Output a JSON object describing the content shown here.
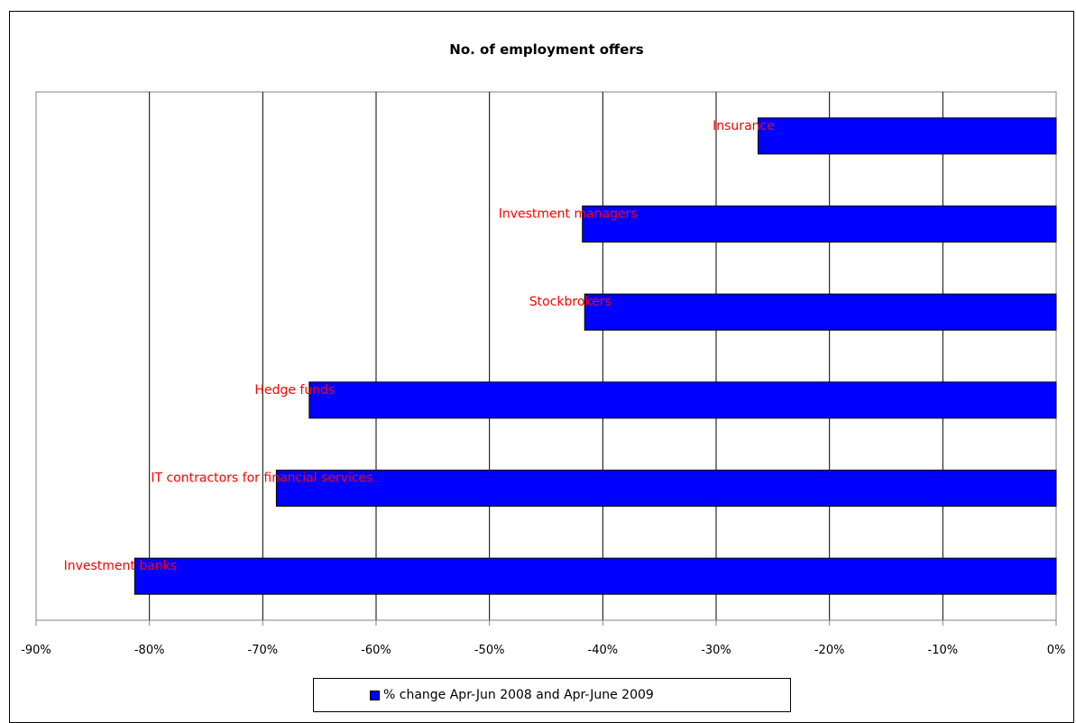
{
  "chart_data": {
    "type": "bar",
    "orientation": "horizontal",
    "title": "No. of employment offers",
    "xlabel": "",
    "ylabel": "",
    "categories": [
      "Insurance",
      "Investment managers",
      "Stockbrokers",
      "Hedge funds",
      "IT contractors for financial services",
      "Investment banks"
    ],
    "series": [
      {
        "name": "% change Apr-Jun 2008 and Apr-June 2009",
        "values": [
          -26.3,
          -41.8,
          -41.6,
          -65.9,
          -68.8,
          -81.3
        ]
      }
    ],
    "xlim": [
      -90,
      0
    ],
    "x_ticks": [
      "-90%",
      "-80%",
      "-70%",
      "-60%",
      "-50%",
      "-40%",
      "-30%",
      "-20%",
      "-10%",
      "0%"
    ],
    "grid": true,
    "legend_position": "bottom",
    "colors": {
      "bar": "#0000ff",
      "category_label": "#ff0000",
      "grid": "#000000"
    }
  }
}
